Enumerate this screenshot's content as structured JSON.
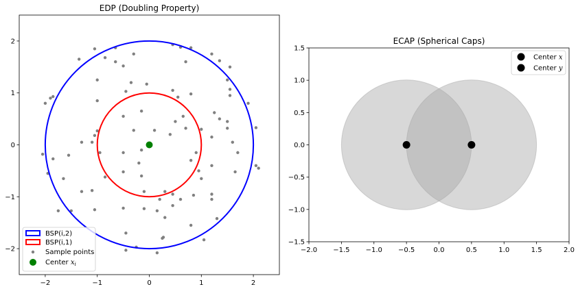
{
  "chart_data": [
    {
      "type": "scatter",
      "title": "EDP (Doubling Property)",
      "xlim": [
        -2.5,
        2.5
      ],
      "ylim": [
        -2.5,
        2.5
      ],
      "xticks": [
        -2,
        -1,
        0,
        1,
        2
      ],
      "yticks": [
        -2,
        -1,
        0,
        1,
        2
      ],
      "xtick_labels": [
        "−2",
        "−1",
        "0",
        "1",
        "2"
      ],
      "ytick_labels": [
        "−2",
        "−1",
        "0",
        "1",
        "2"
      ],
      "grid": false,
      "legend_position": "lower-left",
      "circles": [
        {
          "name": "BSP(i,2)",
          "center": [
            0,
            0
          ],
          "radius": 2,
          "color": "#0000ff"
        },
        {
          "name": "BSP(i,1)",
          "center": [
            0,
            0
          ],
          "radius": 1,
          "color": "#ff0000"
        }
      ],
      "center_point": {
        "name": "Center x",
        "subscript": "i",
        "x": 0,
        "y": 0,
        "color": "#008000"
      },
      "sample_points": {
        "name": "Sample points",
        "color": "#808080",
        "points": [
          [
            -1.05,
            1.85
          ],
          [
            -0.65,
            1.87
          ],
          [
            -1.35,
            1.65
          ],
          [
            -0.85,
            1.68
          ],
          [
            -0.65,
            1.6
          ],
          [
            -0.5,
            1.52
          ],
          [
            -0.3,
            1.75
          ],
          [
            0.45,
            1.93
          ],
          [
            0.6,
            1.88
          ],
          [
            0.8,
            1.87
          ],
          [
            1.2,
            1.75
          ],
          [
            1.35,
            1.62
          ],
          [
            1.55,
            1.5
          ],
          [
            -1.0,
            1.25
          ],
          [
            -0.35,
            1.2
          ],
          [
            -0.05,
            1.17
          ],
          [
            0.7,
            1.6
          ],
          [
            1.5,
            1.25
          ],
          [
            1.55,
            1.07
          ],
          [
            -2.0,
            0.8
          ],
          [
            -1.9,
            0.9
          ],
          [
            -1.85,
            0.93
          ],
          [
            -1.0,
            0.85
          ],
          [
            -0.45,
            1.03
          ],
          [
            0.45,
            1.05
          ],
          [
            0.55,
            0.92
          ],
          [
            0.8,
            0.98
          ],
          [
            1.55,
            0.95
          ],
          [
            1.9,
            0.8
          ],
          [
            1.25,
            0.62
          ],
          [
            1.35,
            0.5
          ],
          [
            1.5,
            0.45
          ],
          [
            2.05,
            0.33
          ],
          [
            1.5,
            0.32
          ],
          [
            -0.5,
            0.55
          ],
          [
            -0.15,
            0.65
          ],
          [
            0.5,
            0.45
          ],
          [
            0.65,
            0.55
          ],
          [
            0.7,
            0.32
          ],
          [
            0.4,
            0.2
          ],
          [
            -1.0,
            0.27
          ],
          [
            -1.05,
            0.18
          ],
          [
            -1.1,
            0.05
          ],
          [
            -1.3,
            0.05
          ],
          [
            -0.3,
            0.28
          ],
          [
            0.1,
            0.28
          ],
          [
            1.0,
            0.3
          ],
          [
            1.2,
            0.15
          ],
          [
            1.6,
            0.05
          ],
          [
            1.7,
            -0.15
          ],
          [
            -2.05,
            -0.18
          ],
          [
            -1.85,
            -0.27
          ],
          [
            -1.55,
            -0.2
          ],
          [
            -0.95,
            -0.15
          ],
          [
            -0.5,
            -0.15
          ],
          [
            -0.15,
            -0.1
          ],
          [
            0.9,
            -0.15
          ],
          [
            2.05,
            -0.4
          ],
          [
            2.1,
            -0.45
          ],
          [
            -1.95,
            -0.55
          ],
          [
            -1.65,
            -0.65
          ],
          [
            -0.85,
            -0.62
          ],
          [
            -0.5,
            -0.52
          ],
          [
            -0.2,
            -0.35
          ],
          [
            -0.15,
            -0.6
          ],
          [
            0.8,
            -0.3
          ],
          [
            0.95,
            -0.5
          ],
          [
            1.0,
            -0.65
          ],
          [
            1.2,
            -0.4
          ],
          [
            1.65,
            -0.52
          ],
          [
            -1.3,
            -0.9
          ],
          [
            -1.1,
            -0.88
          ],
          [
            -0.1,
            -0.9
          ],
          [
            0.3,
            -0.9
          ],
          [
            0.45,
            -0.95
          ],
          [
            0.85,
            -0.97
          ],
          [
            1.2,
            -0.95
          ],
          [
            1.2,
            -1.05
          ],
          [
            -1.75,
            -1.27
          ],
          [
            -1.5,
            -1.27
          ],
          [
            -1.05,
            -1.25
          ],
          [
            -0.5,
            -1.22
          ],
          [
            -0.1,
            -1.23
          ],
          [
            0.15,
            -1.27
          ],
          [
            0.3,
            -1.4
          ],
          [
            0.45,
            -1.17
          ],
          [
            0.2,
            -1.05
          ],
          [
            0.6,
            -1.05
          ],
          [
            0.8,
            -1.55
          ],
          [
            1.3,
            -1.42
          ],
          [
            -0.45,
            -1.7
          ],
          [
            0.25,
            -1.8
          ],
          [
            0.27,
            -1.78
          ],
          [
            1.05,
            -1.83
          ],
          [
            -0.25,
            -1.97
          ],
          [
            -0.45,
            -2.03
          ],
          [
            0.15,
            -2.08
          ]
        ]
      }
    },
    {
      "type": "scatter",
      "title": "ECAP (Spherical Caps)",
      "xlim": [
        -2.0,
        2.0
      ],
      "ylim": [
        -1.5,
        1.5
      ],
      "xticks": [
        -2.0,
        -1.5,
        -1.0,
        -0.5,
        0.0,
        0.5,
        1.0,
        1.5,
        2.0
      ],
      "yticks": [
        -1.5,
        -1.0,
        -0.5,
        0.0,
        0.5,
        1.0,
        1.5
      ],
      "xtick_labels": [
        "−2.0",
        "−1.5",
        "−1.0",
        "−0.5",
        "0.0",
        "0.5",
        "1.0",
        "1.5",
        "2.0"
      ],
      "ytick_labels": [
        "−1.5",
        "−1.0",
        "−0.5",
        "0.0",
        "0.5",
        "1.0",
        "1.5"
      ],
      "grid": false,
      "legend_position": "top-right",
      "caps": [
        {
          "center": [
            -0.5,
            0
          ],
          "radius": 1.0,
          "color": "#a9a9a9",
          "alpha": 0.45
        },
        {
          "center": [
            0.5,
            0
          ],
          "radius": 1.0,
          "color": "#a9a9a9",
          "alpha": 0.45
        }
      ],
      "series": [
        {
          "name": "Center x",
          "var": "x",
          "x": -0.5,
          "y": 0,
          "color": "#000000"
        },
        {
          "name": "Center y",
          "var": "y",
          "x": 0.5,
          "y": 0,
          "color": "#000000"
        }
      ]
    }
  ]
}
